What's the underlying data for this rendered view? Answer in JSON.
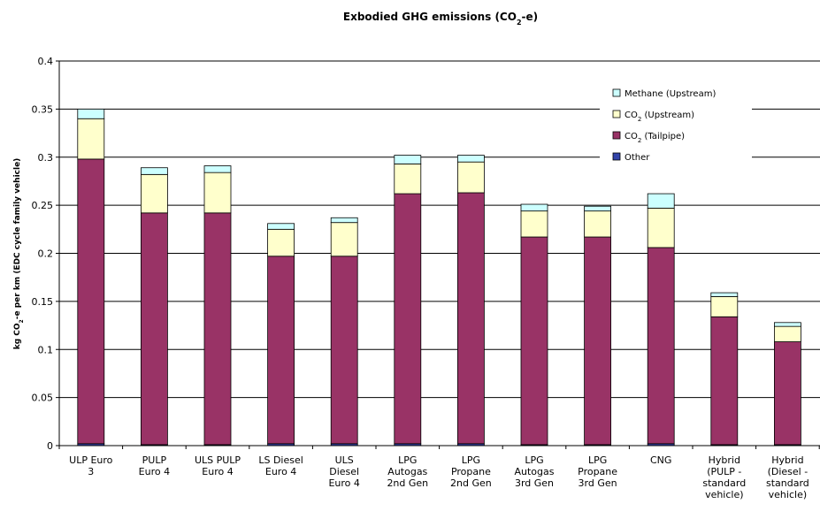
{
  "chart_data": {
    "type": "bar",
    "stacked": true,
    "title": "Exbodied GHG emissions (CO2-e)",
    "title_parts": {
      "before": "Exbodied GHG emissions (CO",
      "sub": "2",
      "after": "-e)"
    },
    "ylabel": "kg CO2-e per km (EDC cycle family vehicle)",
    "ylabel_parts": {
      "before": "kg CO",
      "sub": "2",
      "after": "-e per km (EDC cycle family vehicle)"
    },
    "ylim": [
      0,
      0.4
    ],
    "yticks": [
      0,
      0.05,
      0.1,
      0.15,
      0.2,
      0.25,
      0.3,
      0.35,
      0.4
    ],
    "ytick_labels": [
      "0",
      "0.05",
      "0.1",
      "0.15",
      "0.2",
      "0.25",
      "0.3",
      "0.35",
      "0.4"
    ],
    "grid": true,
    "legend_position": "top-right",
    "categories": [
      [
        "ULP Euro",
        "3"
      ],
      [
        "PULP",
        "Euro 4"
      ],
      [
        "ULS PULP",
        "Euro 4"
      ],
      [
        "LS Diesel",
        "Euro 4"
      ],
      [
        "ULS",
        "Diesel",
        "Euro 4"
      ],
      [
        "LPG",
        "Autogas",
        "2nd Gen"
      ],
      [
        "LPG",
        "Propane",
        "2nd Gen"
      ],
      [
        "LPG",
        "Autogas",
        "3rd Gen"
      ],
      [
        "LPG",
        "Propane",
        "3rd Gen"
      ],
      [
        "CNG"
      ],
      [
        "Hybrid",
        "(PULP -",
        "standard",
        "vehicle)"
      ],
      [
        "Hybrid",
        "(Diesel -",
        "standard",
        "vehicle)"
      ]
    ],
    "series": [
      {
        "name": "Other",
        "legend": {
          "before": "Other",
          "sub": "",
          "after": ""
        },
        "color": "#3344aa",
        "values": [
          0.002,
          0.001,
          0.001,
          0.002,
          0.002,
          0.002,
          0.002,
          0.001,
          0.001,
          0.002,
          0.001,
          0.001
        ]
      },
      {
        "name": "CO2 (Tailpipe)",
        "legend": {
          "before": "CO",
          "sub": "2",
          "after": " (Tailpipe)"
        },
        "color": "#993366",
        "values": [
          0.296,
          0.241,
          0.241,
          0.195,
          0.195,
          0.26,
          0.261,
          0.216,
          0.216,
          0.204,
          0.133,
          0.107
        ]
      },
      {
        "name": "CO2 (Upstream)",
        "legend": {
          "before": "CO",
          "sub": "2",
          "after": " (Upstream)"
        },
        "color": "#ffffcc",
        "values": [
          0.042,
          0.04,
          0.042,
          0.028,
          0.035,
          0.031,
          0.032,
          0.027,
          0.027,
          0.041,
          0.021,
          0.016
        ]
      },
      {
        "name": "Methane (Upstream)",
        "legend": {
          "before": "Methane (Upstream)",
          "sub": "",
          "after": ""
        },
        "color": "#ccffff",
        "values": [
          0.01,
          0.007,
          0.007,
          0.006,
          0.005,
          0.009,
          0.007,
          0.007,
          0.005,
          0.015,
          0.004,
          0.004
        ]
      }
    ],
    "legend_order": [
      3,
      2,
      1,
      0
    ]
  }
}
